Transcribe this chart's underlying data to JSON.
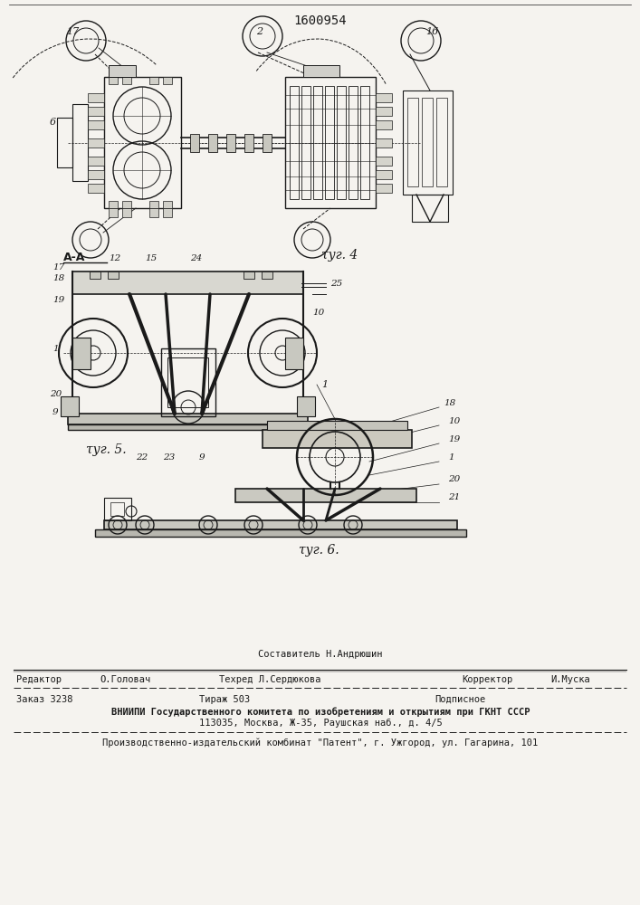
{
  "patent_number": "1600954",
  "bg_color": "#f5f3ef",
  "line_color": "#1a1a1a",
  "fig4_label": "τуг. 4",
  "fig5_label": "τуг. 5.",
  "fig6_label": "τуг. 6.",
  "aa_label": "А-А",
  "composer_line": "Составитель Н.Андрюшин",
  "editor_label": "Редактор",
  "editor_name": "О.Головач",
  "techred_label": "Техред Л.Сердюкова",
  "corrector_label": "Корректор",
  "corrector_name": "И.Муска",
  "zakaz_line": "Заказ 3238",
  "tirazh_line": "Тираж 503",
  "podpisnoe_line": "Подписное",
  "vnipi_line1": "ВНИИПИ Государственного комитета по изобретениям и открытиям при ГКНТ СССР",
  "vnipi_line2": "113035, Москва, Ж-35, Раушская наб., д. 4/5",
  "publisher_line": "Производственно-издательский комбинат \"Патент\", г. Ужгород, ул. Гагарина, 101"
}
